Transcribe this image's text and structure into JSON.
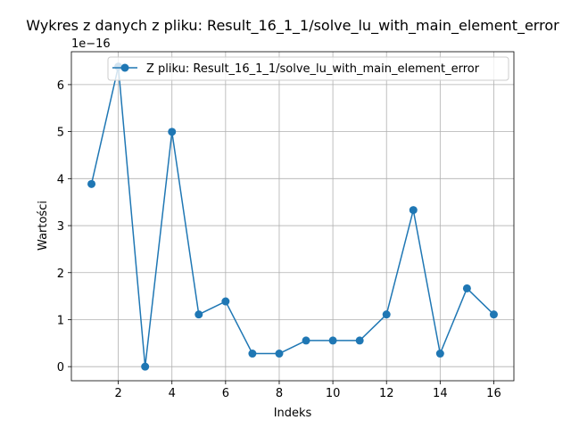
{
  "chart_data": {
    "type": "line",
    "title": "Wykres z danych z pliku: Result_16_1_1/solve_lu_with_main_element_error",
    "xlabel": "Indeks",
    "ylabel": "Wartości",
    "y_offset_label": "1e−16",
    "xlim": [
      0.25,
      16.75
    ],
    "ylim": [
      -0.3,
      6.7
    ],
    "x_ticks": [
      2,
      4,
      6,
      8,
      10,
      12,
      14,
      16
    ],
    "y_ticks": [
      0,
      1,
      2,
      3,
      4,
      5,
      6
    ],
    "grid": true,
    "legend_position": "top-right",
    "series": [
      {
        "name": "Z pliku: Result_16_1_1/solve_lu_with_main_element_error",
        "color": "#1f77b4",
        "marker": "circle",
        "x": [
          1,
          2,
          3,
          4,
          5,
          6,
          7,
          8,
          9,
          10,
          11,
          12,
          13,
          14,
          15,
          16
        ],
        "y": [
          3.886,
          6.384,
          0.0,
          4.996,
          1.11,
          1.388,
          0.278,
          0.278,
          0.555,
          0.555,
          0.555,
          1.11,
          3.331,
          0.278,
          1.665,
          1.11
        ]
      }
    ]
  }
}
